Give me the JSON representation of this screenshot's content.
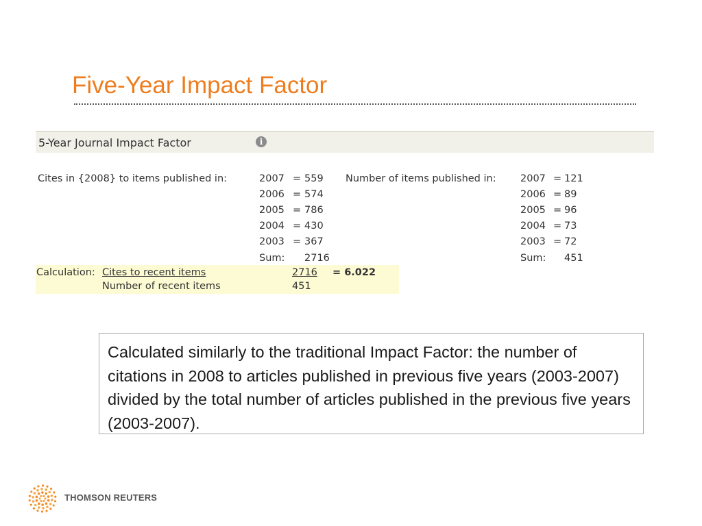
{
  "slide": {
    "title": "Five-Year Impact Factor"
  },
  "jif": {
    "header": "5-Year Journal Impact Factor",
    "info_icon": "info-icon",
    "cites_label": "Cites in {2008} to items published in:",
    "cites": [
      {
        "year": "2007",
        "value": "559"
      },
      {
        "year": "2006",
        "value": "574"
      },
      {
        "year": "2005",
        "value": "786"
      },
      {
        "year": "2004",
        "value": "430"
      },
      {
        "year": "2003",
        "value": "367"
      }
    ],
    "cites_sum_label": "Sum:",
    "cites_sum": "2716",
    "items_label": "Number of items published in:",
    "items": [
      {
        "year": "2007",
        "value": "121"
      },
      {
        "year": "2006",
        "value": "89"
      },
      {
        "year": "2005",
        "value": "96"
      },
      {
        "year": "2004",
        "value": "73"
      },
      {
        "year": "2003",
        "value": "72"
      }
    ],
    "items_sum_label": "Sum:",
    "items_sum": "451",
    "calc_label": "Calculation:",
    "calc_numerator_label": "Cites to recent items",
    "calc_denominator_label": "Number of recent items",
    "calc_numerator": "2716",
    "calc_denominator": "451",
    "calc_result": "= 6.022"
  },
  "note": {
    "text": "Calculated similarly to the traditional Impact Factor:  the number of citations in 2008 to articles published in previous five years (2003-2007) divided by the total number of articles published in the previous five years (2003-2007)."
  },
  "logo": {
    "text": "THOMSON REUTERS"
  }
}
